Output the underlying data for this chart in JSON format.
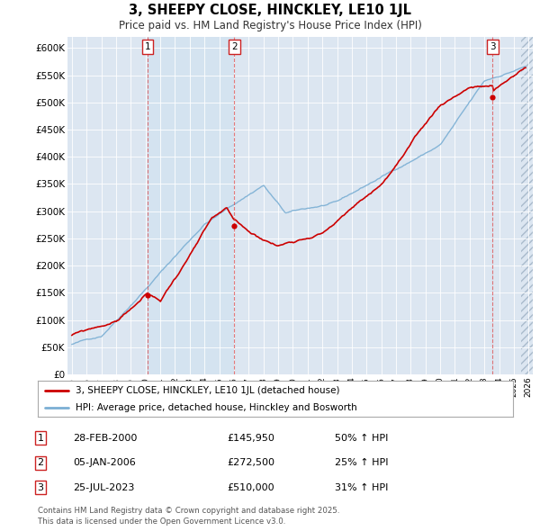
{
  "title": "3, SHEEPY CLOSE, HINCKLEY, LE10 1JL",
  "subtitle": "Price paid vs. HM Land Registry's House Price Index (HPI)",
  "legend_line1": "3, SHEEPY CLOSE, HINCKLEY, LE10 1JL (detached house)",
  "legend_line2": "HPI: Average price, detached house, Hinckley and Bosworth",
  "sale_color": "#cc0000",
  "hpi_color": "#7bafd4",
  "background_color": "#dce6f1",
  "plot_bg": "#dce6f1",
  "shade_color": "#c8d8ee",
  "ylim": [
    0,
    620000
  ],
  "yticks": [
    0,
    50000,
    100000,
    150000,
    200000,
    250000,
    300000,
    350000,
    400000,
    450000,
    500000,
    550000,
    600000
  ],
  "annotations": [
    {
      "num": 1,
      "date": "28-FEB-2000",
      "price": "£145,950",
      "pct": "50% ↑ HPI",
      "year": 2000.15
    },
    {
      "num": 2,
      "date": "05-JAN-2006",
      "price": "£272,500",
      "pct": "25% ↑ HPI",
      "year": 2006.02
    },
    {
      "num": 3,
      "date": "25-JUL-2023",
      "price": "£510,000",
      "pct": "31% ↑ HPI",
      "year": 2023.56
    }
  ],
  "footer": "Contains HM Land Registry data © Crown copyright and database right 2025.\nThis data is licensed under the Open Government Licence v3.0.",
  "xlim_start": 1994.7,
  "xlim_end": 2026.3,
  "xstart_data": 1995.0,
  "xend_data": 2025.5
}
